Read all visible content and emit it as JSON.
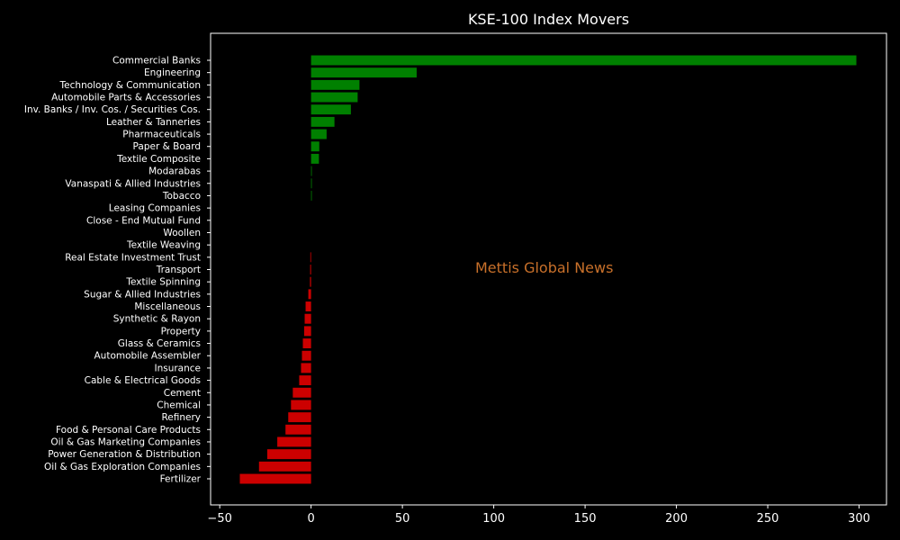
{
  "chart_data": {
    "type": "bar",
    "orientation": "horizontal",
    "title": "KSE-100 Index Movers",
    "watermark": "Mettis Global News",
    "xlabel": "",
    "ylabel": "",
    "xlim": [
      -55,
      315
    ],
    "xticks": [
      -50,
      0,
      50,
      100,
      150,
      200,
      250,
      300
    ],
    "grid": false,
    "colors": {
      "positive": "#008000",
      "negative": "#cc0000",
      "background": "#000000",
      "text": "#ffffff",
      "watermark": "#c8702a"
    },
    "categories": [
      "Commercial Banks",
      "Engineering",
      "Technology & Communication",
      "Automobile Parts & Accessories",
      "Inv. Banks / Inv. Cos. / Securities Cos.",
      "Leather & Tanneries",
      "Pharmaceuticals",
      "Paper & Board",
      "Textile Composite",
      "Modarabas",
      "Vanaspati & Allied Industries",
      "Tobacco",
      "Leasing Companies",
      "Close - End Mutual Fund",
      "Woollen",
      "Textile Weaving",
      "Real Estate Investment Trust",
      "Transport",
      "Textile Spinning",
      "Sugar & Allied Industries",
      "Miscellaneous",
      "Synthetic & Rayon",
      "Property",
      "Glass & Ceramics",
      "Automobile Assembler",
      "Insurance",
      "Cable & Electrical Goods",
      "Cement",
      "Chemical",
      "Refinery",
      "Food & Personal Care Products",
      "Oil & Gas Marketing Companies",
      "Power Generation & Distribution",
      "Oil & Gas Exploration Companies",
      "Fertilizer"
    ],
    "values": [
      298.5,
      57.8,
      26.5,
      25.5,
      21.8,
      12.8,
      8.5,
      4.5,
      4.3,
      0.3,
      0.3,
      0.2,
      0,
      0,
      0,
      0,
      -0.4,
      -0.5,
      -0.6,
      -1.5,
      -3.0,
      -3.5,
      -3.8,
      -4.5,
      -5.0,
      -5.5,
      -6.5,
      -10.0,
      -11.0,
      -12.5,
      -14.0,
      -18.5,
      -24.0,
      -28.5,
      -39.0
    ]
  }
}
